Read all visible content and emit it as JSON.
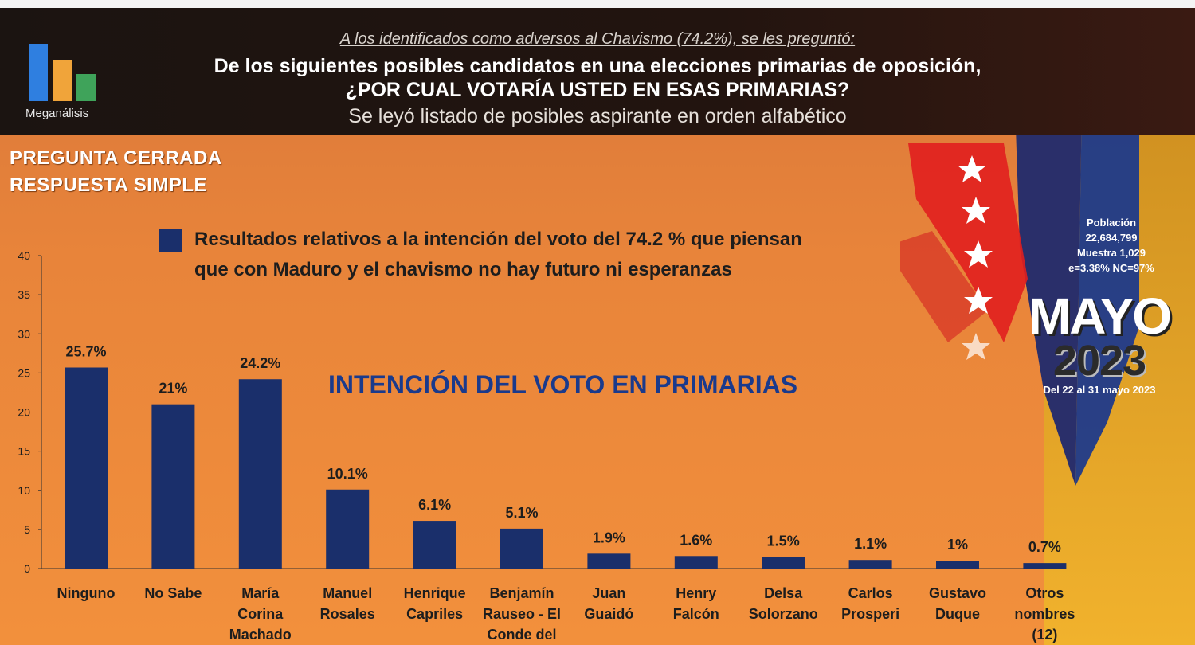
{
  "header": {
    "brand": "Meganálisis",
    "intro": "A los identificados como adversos al Chavismo (74.2%), se les preguntó:",
    "question_line1": "De los siguientes posibles candidatos en una elecciones primarias de oposición,",
    "question_line2": "¿POR CUAL VOTARÍA USTED EN ESAS PRIMARIAS?",
    "note": "Se leyó listado de posibles aspirante en orden alfabético"
  },
  "question_type": {
    "line1": "PREGUNTA  CERRADA",
    "line2": "RESPUESTA SIMPLE"
  },
  "legend": {
    "text": "Resultados relativos a la intención del voto del 74.2 % que piensan que con Maduro y el chavismo no hay futuro ni esperanzas",
    "color": "#1a2f6b"
  },
  "survey_info": {
    "label": "Población",
    "population": "22,684,799",
    "sample": "Muestra 1,029",
    "error": "e=3.38%  NC=97%"
  },
  "date_badge": {
    "month": "MAYO",
    "year": "2023",
    "range": "Del 22 al 31 mayo 2023"
  },
  "colors": {
    "bar": "#1a2f6b",
    "title": "#1a3a8c",
    "background": "#e8843a"
  },
  "chart_data": {
    "type": "bar",
    "title": "INTENCIÓN DEL VOTO EN PRIMARIAS",
    "xlabel": "",
    "ylabel": "",
    "ylim": [
      0,
      40
    ],
    "yticks": [
      0,
      5,
      10,
      15,
      20,
      25,
      30,
      35,
      40
    ],
    "grid": false,
    "categories": [
      [
        "Ninguno"
      ],
      [
        "No Sabe"
      ],
      [
        "María",
        "Corina",
        "Machado"
      ],
      [
        "Manuel",
        "Rosales"
      ],
      [
        "Henrique",
        "Capriles"
      ],
      [
        "Benjamín",
        "Rauseo - El",
        "Conde del"
      ],
      [
        "Juan",
        "Guaidó"
      ],
      [
        "Henry",
        "Falcón"
      ],
      [
        "Delsa",
        "Solorzano"
      ],
      [
        "Carlos",
        "Prosperi"
      ],
      [
        "Gustavo",
        "Duque"
      ],
      [
        "Otros",
        "nombres",
        "(12)"
      ]
    ],
    "values": [
      25.7,
      21,
      24.2,
      10.1,
      6.1,
      5.1,
      1.9,
      1.6,
      1.5,
      1.1,
      1,
      0.7
    ],
    "labels": [
      "25.7%",
      "21%",
      "24.2%",
      "10.1%",
      "6.1%",
      "5.1%",
      "1.9%",
      "1.6%",
      "1.5%",
      "1.1%",
      "1%",
      "0.7%"
    ]
  }
}
